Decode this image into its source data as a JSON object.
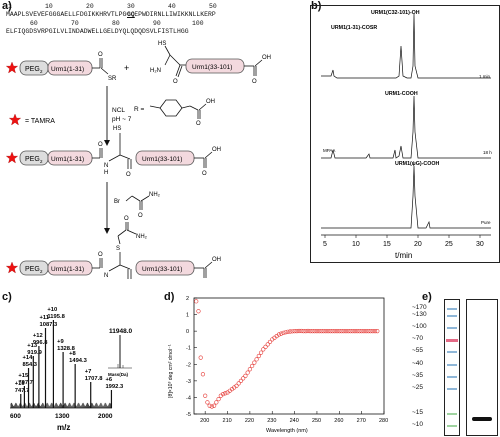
{
  "panels": {
    "a": {
      "label": "a)",
      "ruler_top": [
        "1",
        "10",
        "20",
        "30",
        "40",
        "50"
      ],
      "seq_line1": "MAAPLSVEVEFGGGAELLFDGIKKHRVTLPGQEEPWDIRNLLIWIKKNLLKERP",
      "seq_gq": "GQ",
      "ruler_bottom": [
        "60",
        "70",
        "80",
        "90",
        "100"
      ],
      "seq_line2": "ELFIQGDSVRPGILVLINDADWELLGELDYQLQDQDSVLFISTLHGG",
      "peg": "PEG",
      "peg_sub": "2",
      "urm_n": "Urm1(1-31)",
      "urm_c": "Urm1(33-101)",
      "sr": "SR",
      "hs": "HS",
      "h2n": "H₂N",
      "oh": "OH",
      "o": "O",
      "plus": "+",
      "tamra": "= TAMRA",
      "r_eq": "R =",
      "ncl": "NCL",
      "ph": "pH ~ 7",
      "br": "Br",
      "nh2": "NH₂",
      "h": "H",
      "n": "N",
      "s": "S"
    },
    "b": {
      "label": "b)",
      "trace_labels": [
        "URM1(C32-101)-OH",
        "URM1(1-31)-COSR",
        "URM1-COOH",
        "URM1(ψG)-COOH"
      ],
      "time_labels": [
        "1 min",
        "18 h",
        "Pure"
      ],
      "mpaa": "MPAA",
      "x_ticks": [
        "5",
        "10",
        "15",
        "20",
        "25",
        "30"
      ],
      "xlabel": "t/min"
    },
    "c": {
      "label": "c)",
      "chart_data": {
        "type": "bar",
        "peaks": [
          {
            "charge": "+16",
            "mz": 747.7
          },
          {
            "charge": "+15",
            "mz": 797.7
          },
          {
            "charge": "+14",
            "mz": 854.3
          },
          {
            "charge": "+13",
            "mz": 919.9
          },
          {
            "charge": "+12",
            "mz": 996.8
          },
          {
            "charge": "+11",
            "mz": 1087.3
          },
          {
            "charge": "+10",
            "mz": 1195.8
          },
          {
            "charge": "+9",
            "mz": 1328.8
          },
          {
            "charge": "+8",
            "mz": 1494.3
          },
          {
            "charge": "+7",
            "mz": 1707.8
          },
          {
            "charge": "+6",
            "mz": 1992.3
          }
        ],
        "peak_labels": [
          "+16\n747.7",
          "+15\n797.7",
          "+14\n854.3",
          "+13\n919.9",
          "+12\n996.8",
          "+11\n1087.3",
          "+10\n1195.8",
          "+9\n1328.8",
          "+8\n1494.3",
          "+7\n1707.8",
          "+6\n1992.3"
        ],
        "x_ticks": [
          "600",
          "1300",
          "2000"
        ],
        "xlabel": "m/z",
        "xlim": [
          600,
          2000
        ],
        "inset": {
          "value": "11948.0",
          "xlabel": "Mass(Da)"
        }
      }
    },
    "d": {
      "label": "d)",
      "chart_data": {
        "type": "scatter",
        "xlabel": "Wavelength (nm)",
        "ylabel": "[θ]×10³ deg cm² dmol⁻¹",
        "xlim": [
          195,
          280
        ],
        "ylim": [
          -5,
          2
        ],
        "x_ticks": [
          "200",
          "210",
          "220",
          "230",
          "240",
          "250",
          "260",
          "270",
          "280"
        ],
        "y_ticks": [
          "2",
          "1",
          "0",
          "-1",
          "-2",
          "-3",
          "-4",
          "-5"
        ],
        "color": "#e53935",
        "x": [
          196,
          197,
          198,
          199,
          200,
          201,
          202,
          203,
          204,
          205,
          206,
          207,
          208,
          209,
          210,
          211,
          212,
          213,
          214,
          215,
          216,
          217,
          218,
          219,
          220,
          221,
          222,
          223,
          224,
          225,
          226,
          227,
          228,
          229,
          230,
          231,
          232,
          233,
          234,
          235,
          236,
          237,
          238,
          239,
          240,
          241,
          242,
          243,
          244,
          245,
          246,
          247,
          248,
          249,
          250,
          251,
          252,
          253,
          254,
          255,
          256,
          257,
          258,
          259,
          260,
          261,
          262,
          263,
          264,
          265,
          266,
          267,
          268,
          269,
          270,
          271,
          272,
          273,
          274,
          275,
          276,
          277
        ],
        "y": [
          1.8,
          1.2,
          -1.6,
          -2.6,
          -3.9,
          -4.3,
          -4.5,
          -4.55,
          -4.5,
          -4.3,
          -4.1,
          -3.9,
          -3.8,
          -3.75,
          -3.7,
          -3.6,
          -3.5,
          -3.4,
          -3.3,
          -3.15,
          -3.0,
          -2.85,
          -2.7,
          -2.5,
          -2.3,
          -2.1,
          -1.9,
          -1.7,
          -1.5,
          -1.3,
          -1.1,
          -0.95,
          -0.8,
          -0.65,
          -0.5,
          -0.4,
          -0.3,
          -0.2,
          -0.15,
          -0.1,
          -0.07,
          -0.04,
          -0.02,
          -0.01,
          0.0,
          0.0,
          0.01,
          0.01,
          0.0,
          0.0,
          0.01,
          0.0,
          0.0,
          0.0,
          0.0,
          0.0,
          0.0,
          0.0,
          0.0,
          0.0,
          0.0,
          0.0,
          0.0,
          0.0,
          0.0,
          0.0,
          0.0,
          0.0,
          0.0,
          0.0,
          0.0,
          0.0,
          0.0,
          0.0,
          0.0,
          0.0,
          0.0,
          0.0,
          0.0,
          0.0,
          0.0,
          0.0
        ]
      }
    },
    "e": {
      "label": "e)",
      "ladder": [
        "~170",
        "~130",
        "~100",
        "~70",
        "~55",
        "~40",
        "~35",
        "~25",
        "~15",
        "~10"
      ]
    }
  }
}
